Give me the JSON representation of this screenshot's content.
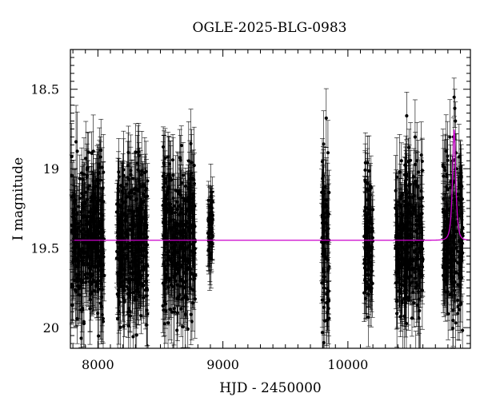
{
  "chart_data": {
    "type": "scatter",
    "title": "OGLE-2025-BLG-0983",
    "xlabel": "HJD - 2450000",
    "ylabel": "I magnitude",
    "xlim": [
      7780,
      10980
    ],
    "ylim": [
      18.25,
      20.13
    ],
    "y_inverted": true,
    "xticks": [
      8000,
      9000,
      10000
    ],
    "yticks": [
      18.5,
      19,
      19.5,
      20
    ],
    "ytick_labels": [
      "18.5",
      "19",
      "19.5",
      "20"
    ],
    "grid": false,
    "series": [
      {
        "kind": "observations_with_error_bars",
        "color": "#000000",
        "seasons": [
          {
            "x_start": 7790,
            "x_end": 8050,
            "mag_center": 19.45,
            "mag_spread": 0.55,
            "err": 0.18
          },
          {
            "x_start": 8150,
            "x_end": 8400,
            "mag_center": 19.45,
            "mag_spread": 0.55,
            "err": 0.18
          },
          {
            "x_start": 8520,
            "x_end": 8780,
            "mag_center": 19.45,
            "mag_spread": 0.55,
            "err": 0.18
          },
          {
            "x_start": 8880,
            "x_end": 8920,
            "mag_center": 19.4,
            "mag_spread": 0.25,
            "err": 0.15
          },
          {
            "x_start": 9790,
            "x_end": 9850,
            "mag_center": 19.5,
            "mag_spread": 0.6,
            "err": 0.2
          },
          {
            "x_start": 10130,
            "x_end": 10200,
            "mag_center": 19.45,
            "mag_spread": 0.55,
            "err": 0.18
          },
          {
            "x_start": 10380,
            "x_end": 10600,
            "mag_center": 19.45,
            "mag_spread": 0.55,
            "err": 0.18
          },
          {
            "x_start": 10760,
            "x_end": 10920,
            "mag_center": 19.45,
            "mag_spread": 0.55,
            "err": 0.18
          }
        ],
        "peak_points": [
          {
            "x": 10850,
            "y": 18.55,
            "err": 0.12
          },
          {
            "x": 10855,
            "y": 18.62,
            "err": 0.12
          },
          {
            "x": 10860,
            "y": 18.7,
            "err": 0.12
          },
          {
            "x": 10845,
            "y": 18.8,
            "err": 0.12
          },
          {
            "x": 10865,
            "y": 18.9,
            "err": 0.12
          },
          {
            "x": 10840,
            "y": 18.95,
            "err": 0.12
          }
        ]
      },
      {
        "kind": "model",
        "color": "#cc00cc",
        "baseline": 19.45,
        "peak_x": 10850,
        "peak_mag": 18.75,
        "timescale": 20
      }
    ]
  }
}
